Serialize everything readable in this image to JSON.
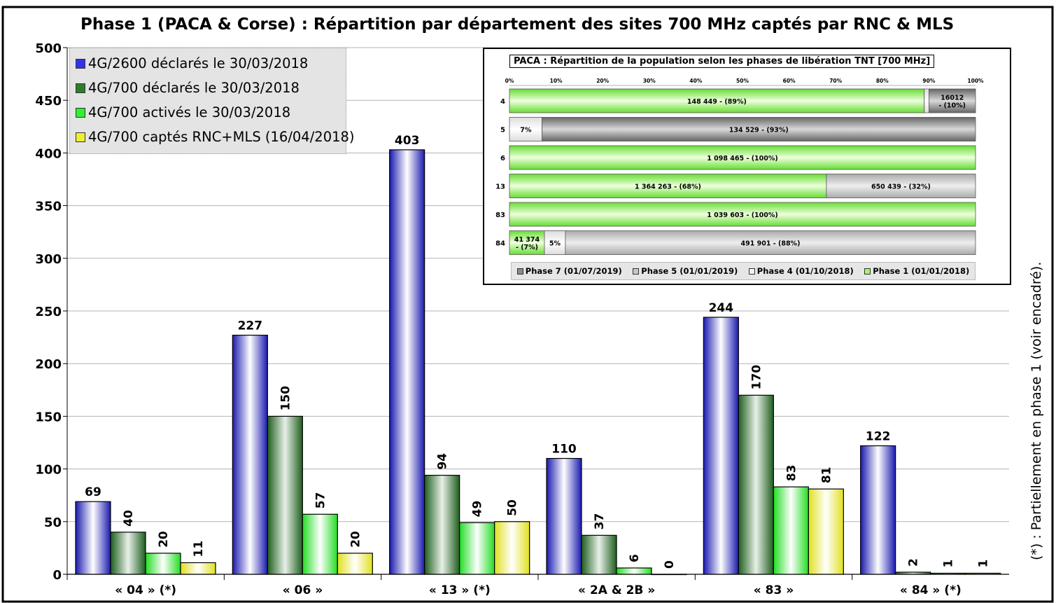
{
  "chart_data": {
    "type": "bar",
    "title": "Phase 1 (PACA & Corse) : Répartition par département des sites 700 MHz captés par RNC & MLS",
    "categories": [
      "« 04 » (*)",
      "« 06 »",
      "« 13 » (*)",
      "« 2A & 2B »",
      "« 83 »",
      "« 84 » (*)"
    ],
    "ylim": [
      0,
      500
    ],
    "yticks": [
      0,
      50,
      100,
      150,
      200,
      250,
      300,
      350,
      400,
      450,
      500
    ],
    "grid": true,
    "series": [
      {
        "name": "4G/2600 déclarés le 30/03/2018",
        "color": "#3333ee",
        "values": [
          69,
          227,
          403,
          110,
          244,
          122
        ]
      },
      {
        "name": "4G/700 déclarés le 30/03/2018",
        "color": "#2e7d2e",
        "values": [
          40,
          150,
          94,
          37,
          170,
          2
        ]
      },
      {
        "name": "4G/700 activés le 30/03/2018",
        "color": "#33ee33",
        "values": [
          20,
          57,
          49,
          6,
          83,
          1
        ]
      },
      {
        "name": "4G/700 captés RNC+MLS (16/04/2018)",
        "color": "#eeee33",
        "values": [
          11,
          20,
          50,
          0,
          81,
          1
        ]
      }
    ],
    "side_note": "(*) : Partiellement en phase 1 (voir encadré).",
    "inset": {
      "type": "stacked-bar-horizontal",
      "title": "PACA : Répartition de la population selon les phases de libération TNT [700 MHz]",
      "xticks": [
        "0%",
        "10%",
        "20%",
        "30%",
        "40%",
        "50%",
        "60%",
        "70%",
        "80%",
        "90%",
        "100%"
      ],
      "legend": [
        {
          "name": "Phase 7 (01/07/2019)",
          "color": "#8a8a8a"
        },
        {
          "name": "Phase 5 (01/01/2019)",
          "color": "#c8c8c8"
        },
        {
          "name": "Phase 4 (01/10/2018)",
          "color": "#f4f4f4"
        },
        {
          "name": "Phase 1 (01/01/2018)",
          "color": "#99ff66"
        }
      ],
      "rows": [
        {
          "label": "4",
          "segments": [
            {
              "phase": "Phase 1 (01/01/2018)",
              "pct": 89,
              "text": "148 449 - (89%)"
            },
            {
              "phase": "Phase 4 (01/10/2018)",
              "pct": 1,
              "text": ""
            },
            {
              "phase": "Phase 7 (01/07/2019)",
              "pct": 10,
              "text": "16012\n- (10%)"
            }
          ]
        },
        {
          "label": "5",
          "segments": [
            {
              "phase": "Phase 4 (01/10/2018)",
              "pct": 7,
              "text": "7%"
            },
            {
              "phase": "Phase 7 (01/07/2019)",
              "pct": 93,
              "text": "134 529 - (93%)"
            }
          ]
        },
        {
          "label": "6",
          "segments": [
            {
              "phase": "Phase 1 (01/01/2018)",
              "pct": 100,
              "text": "1 098 465 - (100%)"
            }
          ]
        },
        {
          "label": "13",
          "segments": [
            {
              "phase": "Phase 1 (01/01/2018)",
              "pct": 68,
              "text": "1 364 263 - (68%)"
            },
            {
              "phase": "Phase 5 (01/01/2019)",
              "pct": 32,
              "text": "650 439 - (32%)"
            }
          ]
        },
        {
          "label": "83",
          "segments": [
            {
              "phase": "Phase 1 (01/01/2018)",
              "pct": 100,
              "text": "1 039 603 - (100%)"
            }
          ]
        },
        {
          "label": "84",
          "segments": [
            {
              "phase": "Phase 1 (01/01/2018)",
              "pct": 7.5,
              "text": "41 374\n- (7%)"
            },
            {
              "phase": "Phase 4 (01/10/2018)",
              "pct": 4.5,
              "text": "5%"
            },
            {
              "phase": "Phase 5 (01/01/2019)",
              "pct": 88,
              "text": "491 901 - (88%)"
            }
          ]
        }
      ]
    }
  }
}
